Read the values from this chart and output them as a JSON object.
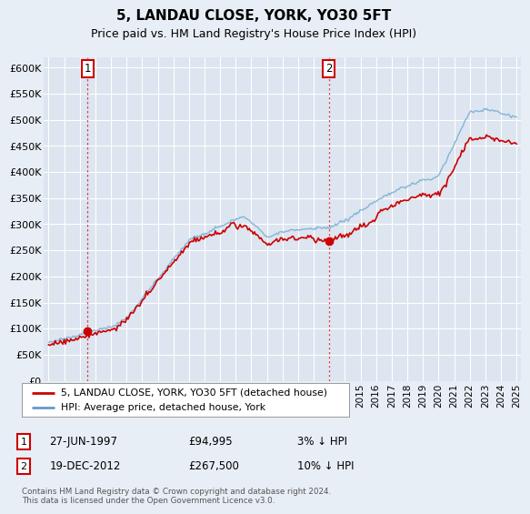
{
  "title": "5, LANDAU CLOSE, YORK, YO30 5FT",
  "subtitle": "Price paid vs. HM Land Registry's House Price Index (HPI)",
  "ylim": [
    0,
    620000
  ],
  "yticks": [
    0,
    50000,
    100000,
    150000,
    200000,
    250000,
    300000,
    350000,
    400000,
    450000,
    500000,
    550000,
    600000
  ],
  "ytick_labels": [
    "£0",
    "£50K",
    "£100K",
    "£150K",
    "£200K",
    "£250K",
    "£300K",
    "£350K",
    "£400K",
    "£450K",
    "£500K",
    "£550K",
    "£600K"
  ],
  "legend_entries": [
    "5, LANDAU CLOSE, YORK, YO30 5FT (detached house)",
    "HPI: Average price, detached house, York"
  ],
  "legend_colors": [
    "#cc0000",
    "#6699cc"
  ],
  "sale1_date": "27-JUN-1997",
  "sale1_price": "£94,995",
  "sale1_hpi": "3% ↓ HPI",
  "sale1_year": 1997.5,
  "sale1_value": 94995,
  "sale2_date": "19-DEC-2012",
  "sale2_price": "£267,500",
  "sale2_hpi": "10% ↓ HPI",
  "sale2_year": 2012.97,
  "sale2_value": 267500,
  "background_color": "#e8eef5",
  "plot_bg_color": "#dde5f0",
  "grid_color": "#ffffff",
  "hpi_line_color": "#7bafd4",
  "sale_line_color": "#cc0000",
  "marker_color": "#cc0000",
  "footnote": "Contains HM Land Registry data © Crown copyright and database right 2024.\nThis data is licensed under the Open Government Licence v3.0."
}
